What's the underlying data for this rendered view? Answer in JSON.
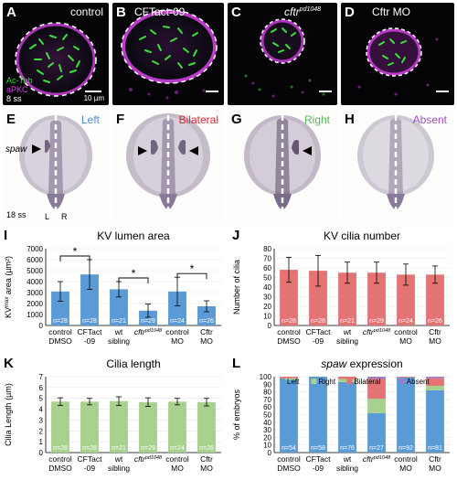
{
  "micro_panels": [
    {
      "letter": "A",
      "label": "control",
      "label_color": "#ffffff"
    },
    {
      "letter": "B",
      "label": "CFTact-09",
      "label_color": "#ffffff"
    },
    {
      "letter": "C",
      "label": "cftr",
      "label_sup": "pd1048",
      "label_color": "#ffffff"
    },
    {
      "letter": "D",
      "label": "Cftr MO",
      "label_color": "#ffffff"
    }
  ],
  "micro_legend": {
    "stain1": "Ac-Tub",
    "stain1_color": "#33dd33",
    "stain2": "aPKC",
    "stain2_color": "#e040e8",
    "stage": "8 ss",
    "scale": "10 µm"
  },
  "embryo_panels": [
    {
      "letter": "E",
      "label": "Left",
      "label_color": "#4a8fd6"
    },
    {
      "letter": "F",
      "label": "Bilateral",
      "label_color": "#d8283a"
    },
    {
      "letter": "G",
      "label": "Right",
      "label_color": "#5cb85c"
    },
    {
      "letter": "H",
      "label": "Absent",
      "label_color": "#9b4fc2"
    }
  ],
  "embryo_legend": {
    "gene": "spaw",
    "stage": "18 ss",
    "left": "L",
    "right": "R"
  },
  "chart_data": [
    {
      "panel": "I",
      "type": "bar",
      "title": "KV lumen area",
      "ylabel": "KV",
      "ylabel_sup": "max",
      "ylabel_rest": " area (µm²)",
      "ylim": [
        0,
        7000
      ],
      "yticks": [
        0,
        1000,
        2000,
        3000,
        4000,
        5000,
        6000,
        7000
      ],
      "color": "#5b9bd5",
      "categories": [
        [
          "control",
          "DMSO"
        ],
        [
          "CFTact",
          "-09"
        ],
        [
          "wt",
          "sibling"
        ],
        [
          "cftr",
          ""
        ],
        [
          "control",
          "MO"
        ],
        [
          "Cftr",
          "MO"
        ]
      ],
      "category_sup": [
        "",
        "",
        "",
        "pd1048",
        "",
        ""
      ],
      "values": [
        3100,
        4650,
        3300,
        1350,
        3100,
        1750
      ],
      "errors": [
        900,
        1350,
        700,
        600,
        1300,
        500
      ],
      "n_labels": [
        "n=28",
        "n=28",
        "n=21",
        "n=29",
        "n=24",
        "n=26"
      ],
      "significance": [
        {
          "from": 0,
          "to": 1,
          "label": "*"
        },
        {
          "from": 2,
          "to": 3,
          "label": "*"
        },
        {
          "from": 4,
          "to": 5,
          "label": "*"
        }
      ]
    },
    {
      "panel": "J",
      "type": "bar",
      "title": "KV cilia number",
      "ylabel": "Number of cilia",
      "ylim": [
        0,
        80
      ],
      "yticks": [
        0,
        10,
        20,
        30,
        40,
        50,
        60,
        70,
        80
      ],
      "color": "#e57373",
      "categories": [
        [
          "control",
          "DMSO"
        ],
        [
          "CFTact",
          "-09"
        ],
        [
          "wt",
          "sibling"
        ],
        [
          "cftr",
          ""
        ],
        [
          "control",
          "MO"
        ],
        [
          "Cftr",
          "MO"
        ]
      ],
      "category_sup": [
        "",
        "",
        "",
        "pd1048",
        "",
        ""
      ],
      "values": [
        58,
        57,
        55,
        55,
        53,
        53
      ],
      "errors": [
        13,
        16,
        11,
        11,
        11,
        9
      ],
      "n_labels": [
        "n=28",
        "n=28",
        "n=21",
        "n=29",
        "n=24",
        "n=26"
      ]
    },
    {
      "panel": "K",
      "type": "bar",
      "title": "Cilia length",
      "ylabel": "Cilia Length (µm)",
      "ylim": [
        0,
        7
      ],
      "yticks": [
        0,
        1,
        2,
        3,
        4,
        5,
        6,
        7
      ],
      "color": "#a9d18e",
      "categories": [
        [
          "control",
          "DMSO"
        ],
        [
          "CFTact",
          "-09"
        ],
        [
          "wt",
          "sibling"
        ],
        [
          "cftr",
          ""
        ],
        [
          "control",
          "MO"
        ],
        [
          "Cftr",
          "MO"
        ]
      ],
      "category_sup": [
        "",
        "",
        "",
        "pd1048",
        "",
        ""
      ],
      "values": [
        4.7,
        4.7,
        4.75,
        4.65,
        4.7,
        4.65
      ],
      "errors": [
        0.35,
        0.3,
        0.4,
        0.4,
        0.3,
        0.35
      ],
      "n_labels": [
        "n=28",
        "n=28",
        "n=21",
        "n=29",
        "n=24",
        "n=26"
      ]
    },
    {
      "panel": "L",
      "type": "bar",
      "stacked": true,
      "title": "spaw",
      "title_rest": " expression",
      "ylabel": "% of embryos",
      "ylim": [
        0,
        100
      ],
      "yticks": [
        0,
        10,
        20,
        30,
        40,
        50,
        60,
        70,
        80,
        90,
        100
      ],
      "categories": [
        [
          "control",
          "DMSO"
        ],
        [
          "CFTact",
          "-09"
        ],
        [
          "wt",
          "sibling"
        ],
        [
          "cftr",
          ""
        ],
        [
          "control",
          "MO"
        ],
        [
          "Cftr",
          "MO"
        ]
      ],
      "category_sup": [
        "",
        "",
        "",
        "pd1048",
        "",
        ""
      ],
      "series": [
        {
          "name": "Left",
          "color": "#5b9bd5",
          "values": [
            96,
            100,
            93,
            52,
            99,
            82
          ]
        },
        {
          "name": "Right",
          "color": "#a9d18e",
          "values": [
            2,
            0,
            4,
            19,
            0,
            6
          ]
        },
        {
          "name": "Bilateral",
          "color": "#e57373",
          "values": [
            2,
            0,
            3,
            26,
            1,
            10
          ]
        },
        {
          "name": "Absent",
          "color": "#9b7fc7",
          "values": [
            0,
            0,
            0,
            3,
            0,
            2
          ]
        }
      ],
      "legend_position": "top",
      "n_labels": [
        "n=54",
        "n=58",
        "n=76",
        "n=27",
        "n=92",
        "n=81"
      ]
    }
  ]
}
